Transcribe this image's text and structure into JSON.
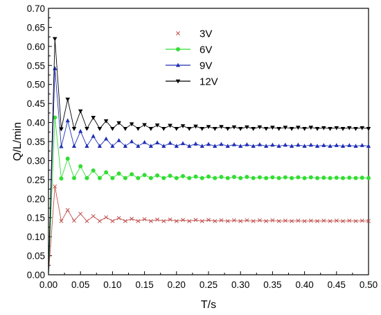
{
  "chart_data": {
    "type": "line",
    "title": "",
    "xlabel": "T/s",
    "ylabel": "Q/L/min",
    "xlim": [
      0,
      0.5
    ],
    "ylim": [
      0,
      0.7
    ],
    "x_ticks": [
      "0.00",
      "0.05",
      "0.10",
      "0.15",
      "0.20",
      "0.25",
      "0.30",
      "0.35",
      "0.40",
      "0.45",
      "0.50"
    ],
    "y_ticks": [
      "0.00",
      "0.05",
      "0.10",
      "0.15",
      "0.20",
      "0.25",
      "0.30",
      "0.35",
      "0.40",
      "0.45",
      "0.50",
      "0.55",
      "0.60",
      "0.65",
      "0.70"
    ],
    "grid": false,
    "legend_position": "top-center",
    "series": [
      {
        "name": "3V",
        "color": "#c0504d",
        "marker": "x",
        "x": [
          0,
          0.01,
          0.02,
          0.03,
          0.04,
          0.05,
          0.06,
          0.07,
          0.08,
          0.09,
          0.1,
          0.11,
          0.12,
          0.13,
          0.14,
          0.15,
          0.16,
          0.17,
          0.18,
          0.19,
          0.2,
          0.21,
          0.22,
          0.23,
          0.24,
          0.25,
          0.26,
          0.27,
          0.28,
          0.29,
          0.3,
          0.31,
          0.32,
          0.33,
          0.34,
          0.35,
          0.36,
          0.37,
          0.38,
          0.39,
          0.4,
          0.41,
          0.42,
          0.43,
          0.44,
          0.45,
          0.46,
          0.47,
          0.48,
          0.49,
          0.5
        ],
        "values": [
          0.0,
          0.232,
          0.141,
          0.17,
          0.142,
          0.16,
          0.141,
          0.154,
          0.141,
          0.151,
          0.141,
          0.149,
          0.141,
          0.147,
          0.141,
          0.146,
          0.141,
          0.145,
          0.141,
          0.145,
          0.141,
          0.144,
          0.141,
          0.144,
          0.141,
          0.144,
          0.141,
          0.143,
          0.141,
          0.143,
          0.141,
          0.143,
          0.141,
          0.143,
          0.141,
          0.143,
          0.141,
          0.142,
          0.141,
          0.142,
          0.141,
          0.142,
          0.141,
          0.142,
          0.141,
          0.142,
          0.141,
          0.142,
          0.141,
          0.142,
          0.141
        ]
      },
      {
        "name": "6V",
        "color": "#33dd33",
        "marker": "circle",
        "x": [
          0,
          0.01,
          0.02,
          0.03,
          0.04,
          0.05,
          0.06,
          0.07,
          0.08,
          0.09,
          0.1,
          0.11,
          0.12,
          0.13,
          0.14,
          0.15,
          0.16,
          0.17,
          0.18,
          0.19,
          0.2,
          0.21,
          0.22,
          0.23,
          0.24,
          0.25,
          0.26,
          0.27,
          0.28,
          0.29,
          0.3,
          0.31,
          0.32,
          0.33,
          0.34,
          0.35,
          0.36,
          0.37,
          0.38,
          0.39,
          0.4,
          0.41,
          0.42,
          0.43,
          0.44,
          0.45,
          0.46,
          0.47,
          0.48,
          0.49,
          0.5
        ],
        "values": [
          0.0,
          0.413,
          0.253,
          0.305,
          0.254,
          0.285,
          0.254,
          0.274,
          0.254,
          0.269,
          0.254,
          0.266,
          0.254,
          0.264,
          0.254,
          0.262,
          0.254,
          0.261,
          0.254,
          0.26,
          0.254,
          0.259,
          0.254,
          0.258,
          0.254,
          0.258,
          0.254,
          0.257,
          0.254,
          0.257,
          0.254,
          0.257,
          0.254,
          0.256,
          0.254,
          0.256,
          0.254,
          0.256,
          0.254,
          0.256,
          0.254,
          0.256,
          0.254,
          0.255,
          0.254,
          0.255,
          0.254,
          0.255,
          0.254,
          0.255,
          0.254
        ]
      },
      {
        "name": "9V",
        "color": "#1f2fb5",
        "marker": "triangle",
        "x": [
          0,
          0.01,
          0.02,
          0.03,
          0.04,
          0.05,
          0.06,
          0.07,
          0.08,
          0.09,
          0.1,
          0.11,
          0.12,
          0.13,
          0.14,
          0.15,
          0.16,
          0.17,
          0.18,
          0.19,
          0.2,
          0.21,
          0.22,
          0.23,
          0.24,
          0.25,
          0.26,
          0.27,
          0.28,
          0.29,
          0.3,
          0.31,
          0.32,
          0.33,
          0.34,
          0.35,
          0.36,
          0.37,
          0.38,
          0.39,
          0.4,
          0.41,
          0.42,
          0.43,
          0.44,
          0.45,
          0.46,
          0.47,
          0.48,
          0.49,
          0.5
        ],
        "values": [
          0.0,
          0.542,
          0.337,
          0.405,
          0.338,
          0.377,
          0.338,
          0.364,
          0.338,
          0.357,
          0.338,
          0.353,
          0.338,
          0.35,
          0.338,
          0.348,
          0.338,
          0.347,
          0.338,
          0.346,
          0.338,
          0.345,
          0.338,
          0.344,
          0.338,
          0.343,
          0.338,
          0.343,
          0.338,
          0.342,
          0.338,
          0.342,
          0.338,
          0.342,
          0.338,
          0.341,
          0.338,
          0.341,
          0.338,
          0.341,
          0.338,
          0.341,
          0.338,
          0.34,
          0.338,
          0.34,
          0.338,
          0.34,
          0.338,
          0.34,
          0.338
        ]
      },
      {
        "name": "12V",
        "color": "#000000",
        "marker": "triangle-down",
        "x": [
          0,
          0.01,
          0.02,
          0.03,
          0.04,
          0.05,
          0.06,
          0.07,
          0.08,
          0.09,
          0.1,
          0.11,
          0.12,
          0.13,
          0.14,
          0.15,
          0.16,
          0.17,
          0.18,
          0.19,
          0.2,
          0.21,
          0.22,
          0.23,
          0.24,
          0.25,
          0.26,
          0.27,
          0.28,
          0.29,
          0.3,
          0.31,
          0.32,
          0.33,
          0.34,
          0.35,
          0.36,
          0.37,
          0.38,
          0.39,
          0.4,
          0.41,
          0.42,
          0.43,
          0.44,
          0.45,
          0.46,
          0.47,
          0.48,
          0.49,
          0.5
        ],
        "values": [
          0.0,
          0.62,
          0.383,
          0.461,
          0.384,
          0.43,
          0.384,
          0.413,
          0.384,
          0.404,
          0.384,
          0.399,
          0.384,
          0.396,
          0.384,
          0.394,
          0.384,
          0.393,
          0.384,
          0.392,
          0.384,
          0.391,
          0.384,
          0.39,
          0.384,
          0.389,
          0.384,
          0.389,
          0.384,
          0.388,
          0.384,
          0.388,
          0.384,
          0.388,
          0.384,
          0.387,
          0.384,
          0.387,
          0.384,
          0.387,
          0.384,
          0.387,
          0.384,
          0.386,
          0.384,
          0.386,
          0.384,
          0.386,
          0.384,
          0.386,
          0.384
        ]
      }
    ]
  }
}
